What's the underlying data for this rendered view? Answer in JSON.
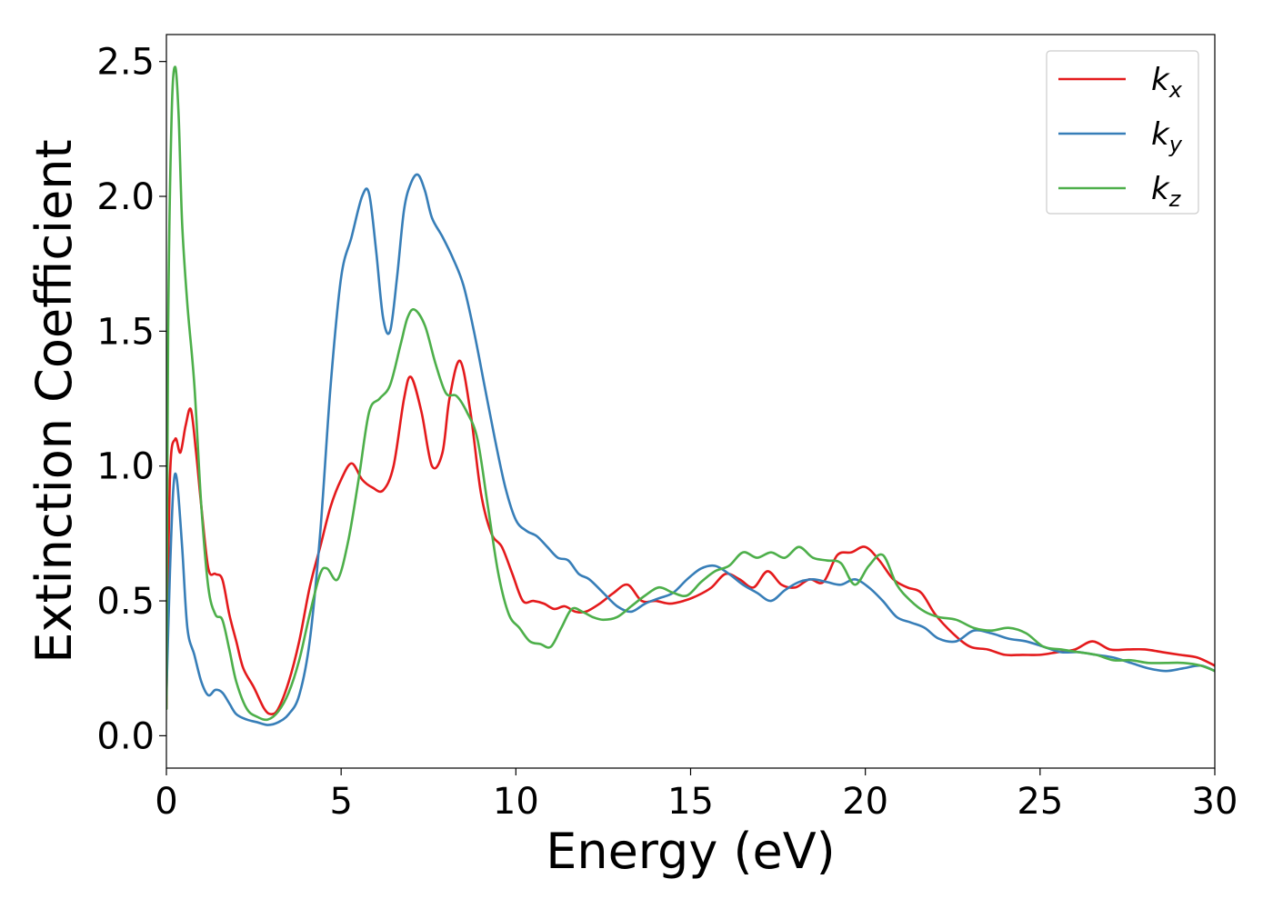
{
  "chart_data": {
    "type": "line",
    "title": "",
    "xlabel": "Energy (eV)",
    "ylabel": "Extinction Coefficient",
    "xlim": [
      0,
      30
    ],
    "ylim": [
      -0.12,
      2.6
    ],
    "xticks": [
      0,
      5,
      10,
      15,
      20,
      25,
      30
    ],
    "xtick_labels": [
      "0",
      "5",
      "10",
      "15",
      "20",
      "25",
      "30"
    ],
    "yticks": [
      0.0,
      0.5,
      1.0,
      1.5,
      2.0,
      2.5
    ],
    "ytick_labels": [
      "0.0",
      "0.5",
      "1.0",
      "1.5",
      "2.0",
      "2.5"
    ],
    "grid": false,
    "legend_position": "top-right",
    "series": [
      {
        "name": "k_x",
        "legend_base": "k",
        "legend_sub": "x",
        "color": "#e41a1c",
        "x": [
          0,
          0.1,
          0.25,
          0.4,
          0.55,
          0.7,
          0.85,
          1.0,
          1.2,
          1.4,
          1.6,
          1.8,
          2.0,
          2.2,
          2.5,
          2.8,
          3.0,
          3.2,
          3.5,
          3.8,
          4.1,
          4.4,
          4.7,
          5.0,
          5.3,
          5.6,
          5.9,
          6.2,
          6.5,
          6.8,
          7.0,
          7.3,
          7.6,
          7.9,
          8.1,
          8.4,
          8.7,
          9.0,
          9.3,
          9.6,
          9.9,
          10.2,
          10.5,
          10.8,
          11.1,
          11.4,
          11.7,
          12.0,
          12.4,
          12.8,
          13.2,
          13.6,
          14.0,
          14.4,
          14.8,
          15.2,
          15.6,
          16.0,
          16.4,
          16.8,
          17.2,
          17.6,
          18.0,
          18.4,
          18.8,
          19.2,
          19.6,
          20.0,
          20.4,
          20.8,
          21.2,
          21.6,
          22.0,
          22.5,
          23.0,
          23.5,
          24.0,
          24.5,
          25.0,
          25.5,
          26.0,
          26.5,
          27.0,
          27.5,
          28.0,
          28.5,
          29.0,
          29.5,
          30.0
        ],
        "y": [
          0.1,
          0.95,
          1.1,
          1.05,
          1.15,
          1.21,
          1.05,
          0.85,
          0.62,
          0.6,
          0.58,
          0.45,
          0.35,
          0.25,
          0.18,
          0.1,
          0.08,
          0.1,
          0.2,
          0.35,
          0.55,
          0.7,
          0.85,
          0.95,
          1.01,
          0.95,
          0.92,
          0.91,
          1.0,
          1.25,
          1.33,
          1.2,
          1.0,
          1.05,
          1.25,
          1.39,
          1.2,
          0.9,
          0.75,
          0.7,
          0.6,
          0.5,
          0.5,
          0.49,
          0.47,
          0.48,
          0.46,
          0.46,
          0.49,
          0.53,
          0.56,
          0.5,
          0.5,
          0.49,
          0.5,
          0.52,
          0.55,
          0.6,
          0.58,
          0.55,
          0.61,
          0.56,
          0.55,
          0.58,
          0.57,
          0.67,
          0.68,
          0.7,
          0.65,
          0.58,
          0.55,
          0.53,
          0.45,
          0.38,
          0.33,
          0.32,
          0.3,
          0.3,
          0.3,
          0.31,
          0.32,
          0.35,
          0.32,
          0.32,
          0.32,
          0.31,
          0.3,
          0.29,
          0.26
        ]
      },
      {
        "name": "k_y",
        "legend_base": "k",
        "legend_sub": "y",
        "color": "#377eb8",
        "x": [
          0,
          0.1,
          0.2,
          0.3,
          0.45,
          0.6,
          0.8,
          1.0,
          1.2,
          1.4,
          1.6,
          1.8,
          2.0,
          2.3,
          2.6,
          2.9,
          3.2,
          3.5,
          3.8,
          4.1,
          4.4,
          4.7,
          5.0,
          5.3,
          5.6,
          5.8,
          6.0,
          6.2,
          6.4,
          6.6,
          6.8,
          7.0,
          7.2,
          7.4,
          7.6,
          7.9,
          8.2,
          8.5,
          8.8,
          9.1,
          9.4,
          9.7,
          10.0,
          10.3,
          10.6,
          10.9,
          11.2,
          11.5,
          11.8,
          12.1,
          12.5,
          12.9,
          13.3,
          13.7,
          14.1,
          14.5,
          14.9,
          15.3,
          15.7,
          16.1,
          16.5,
          16.9,
          17.3,
          17.7,
          18.1,
          18.5,
          18.9,
          19.3,
          19.7,
          20.1,
          20.5,
          20.9,
          21.3,
          21.7,
          22.1,
          22.6,
          23.1,
          23.6,
          24.1,
          24.6,
          25.1,
          25.6,
          26.1,
          26.6,
          27.1,
          27.6,
          28.1,
          28.6,
          29.1,
          29.6,
          30.0
        ],
        "y": [
          0.15,
          0.6,
          0.92,
          0.95,
          0.7,
          0.4,
          0.3,
          0.2,
          0.15,
          0.17,
          0.16,
          0.12,
          0.08,
          0.06,
          0.05,
          0.04,
          0.05,
          0.08,
          0.15,
          0.35,
          0.75,
          1.3,
          1.7,
          1.85,
          2.0,
          2.01,
          1.8,
          1.55,
          1.5,
          1.7,
          1.95,
          2.05,
          2.08,
          2.02,
          1.92,
          1.85,
          1.77,
          1.67,
          1.5,
          1.3,
          1.1,
          0.92,
          0.8,
          0.76,
          0.74,
          0.7,
          0.66,
          0.65,
          0.6,
          0.58,
          0.53,
          0.48,
          0.46,
          0.49,
          0.51,
          0.53,
          0.58,
          0.62,
          0.63,
          0.6,
          0.56,
          0.53,
          0.5,
          0.54,
          0.57,
          0.58,
          0.57,
          0.56,
          0.58,
          0.55,
          0.5,
          0.44,
          0.42,
          0.4,
          0.36,
          0.35,
          0.39,
          0.38,
          0.36,
          0.35,
          0.33,
          0.31,
          0.31,
          0.3,
          0.29,
          0.27,
          0.25,
          0.24,
          0.25,
          0.26,
          0.24
        ]
      },
      {
        "name": "k_z",
        "legend_base": "k",
        "legend_sub": "z",
        "color": "#4daf4a",
        "x": [
          0,
          0.05,
          0.15,
          0.25,
          0.35,
          0.45,
          0.6,
          0.8,
          1.0,
          1.2,
          1.4,
          1.6,
          1.8,
          2.0,
          2.3,
          2.6,
          2.9,
          3.2,
          3.5,
          3.8,
          4.1,
          4.4,
          4.6,
          4.9,
          5.2,
          5.5,
          5.8,
          6.1,
          6.4,
          6.7,
          6.9,
          7.1,
          7.4,
          7.7,
          8.0,
          8.3,
          8.6,
          8.9,
          9.2,
          9.5,
          9.8,
          10.1,
          10.4,
          10.7,
          11.0,
          11.3,
          11.6,
          11.9,
          12.2,
          12.5,
          12.9,
          13.3,
          13.7,
          14.1,
          14.5,
          14.9,
          15.3,
          15.7,
          16.1,
          16.5,
          16.9,
          17.3,
          17.7,
          18.1,
          18.5,
          18.9,
          19.3,
          19.7,
          20.1,
          20.5,
          20.9,
          21.3,
          21.7,
          22.1,
          22.6,
          23.1,
          23.6,
          24.1,
          24.6,
          25.1,
          25.6,
          26.1,
          26.6,
          27.1,
          27.6,
          28.1,
          28.6,
          29.1,
          29.6,
          30.0
        ],
        "y": [
          0.1,
          1.5,
          2.3,
          2.48,
          2.3,
          1.9,
          1.6,
          1.3,
          0.85,
          0.55,
          0.45,
          0.43,
          0.32,
          0.2,
          0.1,
          0.07,
          0.06,
          0.09,
          0.16,
          0.28,
          0.45,
          0.6,
          0.62,
          0.58,
          0.72,
          0.95,
          1.2,
          1.25,
          1.3,
          1.45,
          1.55,
          1.58,
          1.52,
          1.38,
          1.27,
          1.26,
          1.2,
          1.1,
          0.85,
          0.6,
          0.45,
          0.4,
          0.35,
          0.34,
          0.33,
          0.4,
          0.47,
          0.46,
          0.44,
          0.43,
          0.44,
          0.48,
          0.52,
          0.55,
          0.53,
          0.52,
          0.57,
          0.61,
          0.63,
          0.68,
          0.66,
          0.68,
          0.66,
          0.7,
          0.66,
          0.65,
          0.64,
          0.56,
          0.63,
          0.67,
          0.56,
          0.5,
          0.46,
          0.44,
          0.43,
          0.4,
          0.39,
          0.4,
          0.38,
          0.33,
          0.32,
          0.31,
          0.3,
          0.28,
          0.28,
          0.27,
          0.27,
          0.27,
          0.26,
          0.24
        ]
      }
    ]
  }
}
